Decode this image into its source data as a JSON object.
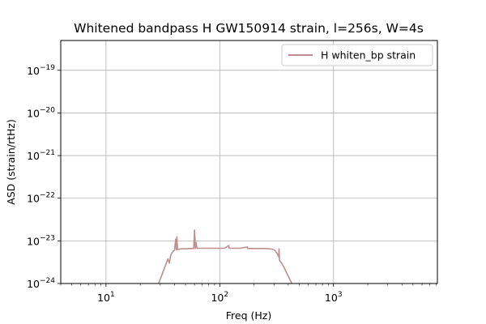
{
  "chart_data": {
    "type": "line",
    "title": "Whitened bandpass H GW150914 strain, l=256s, W=4s",
    "xlabel": "Freq (Hz)",
    "ylabel": "ASD (strain/rtHz)",
    "xscale": "log",
    "yscale": "log",
    "xlim": [
      4,
      8192
    ],
    "ylim": [
      1e-24,
      5e-19
    ],
    "grid": true,
    "legend_position": "top-right",
    "x_ticks": [
      {
        "value": 10,
        "base": "10",
        "exp": "1"
      },
      {
        "value": 100,
        "base": "10",
        "exp": "2"
      },
      {
        "value": 1000,
        "base": "10",
        "exp": "3"
      }
    ],
    "y_ticks": [
      {
        "value": 1e-24,
        "base": "10",
        "exp": "−24"
      },
      {
        "value": 1e-23,
        "base": "10",
        "exp": "−23"
      },
      {
        "value": 1e-22,
        "base": "10",
        "exp": "−22"
      },
      {
        "value": 1e-21,
        "base": "10",
        "exp": "−21"
      },
      {
        "value": 1e-20,
        "base": "10",
        "exp": "−20"
      },
      {
        "value": 1e-19,
        "base": "10",
        "exp": "−19"
      }
    ],
    "series": [
      {
        "name": "H whiten_bp strain",
        "color": "#c08e8e",
        "points": [
          [
            29,
            1e-24
          ],
          [
            31,
            1.6e-24
          ],
          [
            33,
            2.5e-24
          ],
          [
            35,
            3.8e-24
          ],
          [
            36,
            3e-24
          ],
          [
            37,
            4.5e-24
          ],
          [
            38,
            5.2e-24
          ],
          [
            39,
            5.8e-24
          ],
          [
            40,
            6e-24
          ],
          [
            41,
            1.1e-23
          ],
          [
            41.5,
            6.2e-24
          ],
          [
            42,
            1.25e-23
          ],
          [
            42.5,
            6.3e-24
          ],
          [
            44,
            6.4e-24
          ],
          [
            46,
            6.5e-24
          ],
          [
            50,
            6.5e-24
          ],
          [
            55,
            6.6e-24
          ],
          [
            59,
            6.6e-24
          ],
          [
            60,
            1.8e-23
          ],
          [
            60.5,
            1.2e-23
          ],
          [
            61,
            6.6e-24
          ],
          [
            62,
            9e-24
          ],
          [
            63,
            6.7e-24
          ],
          [
            70,
            6.7e-24
          ],
          [
            80,
            6.7e-24
          ],
          [
            90,
            6.7e-24
          ],
          [
            100,
            6.7e-24
          ],
          [
            110,
            6.7e-24
          ],
          [
            120,
            7.8e-24
          ],
          [
            121,
            6.7e-24
          ],
          [
            130,
            6.7e-24
          ],
          [
            150,
            6.7e-24
          ],
          [
            175,
            7.2e-24
          ],
          [
            176,
            6.6e-24
          ],
          [
            200,
            6.6e-24
          ],
          [
            250,
            6.6e-24
          ],
          [
            290,
            6.4e-24
          ],
          [
            305,
            6e-24
          ],
          [
            320,
            5e-24
          ],
          [
            330,
            4.2e-24
          ],
          [
            332,
            6.5e-24
          ],
          [
            335,
            3.5e-24
          ],
          [
            350,
            3e-24
          ],
          [
            370,
            2.3e-24
          ],
          [
            390,
            1.7e-24
          ],
          [
            410,
            1.3e-24
          ],
          [
            430,
            1e-24
          ]
        ]
      }
    ]
  }
}
